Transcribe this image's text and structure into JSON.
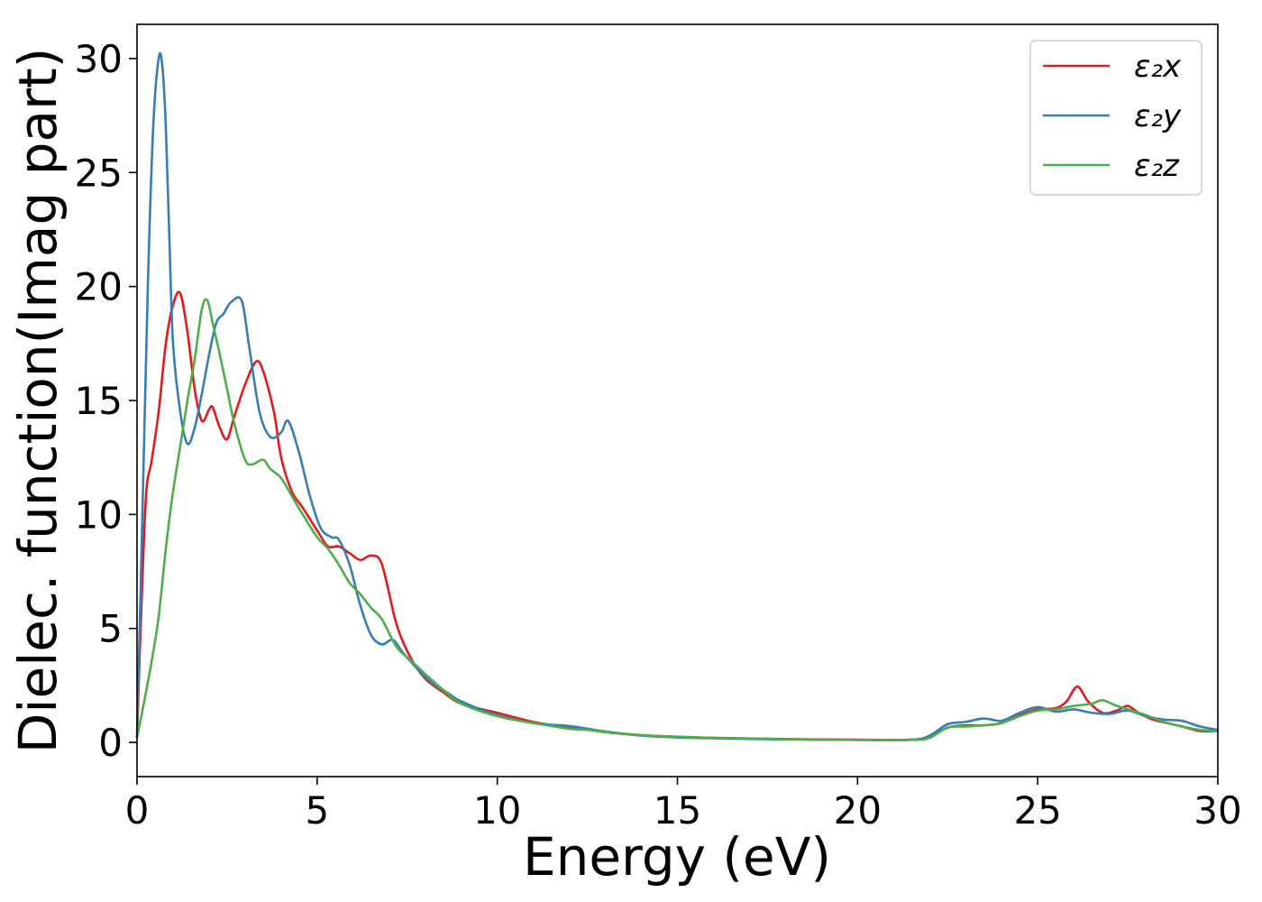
{
  "chart_data": {
    "type": "line",
    "xlabel": "Energy (eV)",
    "ylabel": "Dielec. function(Imag part)",
    "xlim": [
      0,
      30
    ],
    "ylim": [
      -1.5,
      31.5
    ],
    "xticks": [
      0,
      5,
      10,
      15,
      20,
      25,
      30
    ],
    "yticks": [
      0,
      5,
      10,
      15,
      20,
      25,
      30
    ],
    "grid": false,
    "legend_position": "top-right",
    "series": [
      {
        "name": "ε₂x",
        "color": "#e41a1c",
        "x": [
          0,
          0.1,
          0.25,
          0.4,
          0.6,
          0.8,
          1.0,
          1.2,
          1.4,
          1.6,
          1.8,
          2.0,
          2.1,
          2.3,
          2.5,
          2.7,
          3.0,
          3.3,
          3.5,
          3.8,
          4.0,
          4.3,
          4.6,
          5.0,
          5.3,
          5.6,
          5.9,
          6.2,
          6.5,
          6.8,
          7.2,
          7.6,
          8.0,
          8.5,
          9.0,
          10.0,
          11.0,
          12.0,
          12.5,
          13.0,
          14.0,
          15.0,
          16.0,
          18.0,
          20.0,
          21.5,
          22.0,
          22.5,
          23.0,
          23.5,
          24.0,
          24.5,
          25.0,
          25.5,
          25.8,
          26.1,
          26.4,
          26.8,
          27.2,
          27.5,
          27.8,
          28.2,
          28.6,
          29.0,
          29.5,
          30.0
        ],
        "values": [
          0.2,
          5.0,
          10.8,
          12.3,
          14.5,
          17.5,
          19.2,
          19.7,
          18.0,
          15.5,
          14.1,
          14.6,
          14.7,
          13.8,
          13.3,
          14.3,
          15.7,
          16.7,
          16.3,
          14.5,
          12.5,
          11.0,
          10.3,
          9.3,
          8.6,
          8.6,
          8.3,
          8.0,
          8.2,
          7.8,
          5.2,
          3.7,
          2.8,
          2.2,
          1.7,
          1.3,
          0.9,
          0.65,
          0.6,
          0.45,
          0.32,
          0.25,
          0.2,
          0.15,
          0.12,
          0.12,
          0.25,
          0.65,
          0.75,
          0.75,
          0.85,
          1.2,
          1.45,
          1.5,
          1.8,
          2.45,
          1.8,
          1.3,
          1.4,
          1.6,
          1.3,
          1.0,
          0.85,
          0.7,
          0.5,
          0.5
        ]
      },
      {
        "name": "ε₂y",
        "color": "#377eb8",
        "x": [
          0,
          0.15,
          0.3,
          0.45,
          0.6,
          0.7,
          0.8,
          0.9,
          1.0,
          1.2,
          1.4,
          1.6,
          1.8,
          2.0,
          2.2,
          2.4,
          2.6,
          2.9,
          3.1,
          3.4,
          3.7,
          4.0,
          4.2,
          4.5,
          4.8,
          5.1,
          5.4,
          5.6,
          5.9,
          6.2,
          6.5,
          6.8,
          7.1,
          7.4,
          7.8,
          8.2,
          8.6,
          9.0,
          10.0,
          11.0,
          12.0,
          12.5,
          13.0,
          14.0,
          15.0,
          16.0,
          18.0,
          20.0,
          21.5,
          22.0,
          22.5,
          23.0,
          23.5,
          24.0,
          24.5,
          25.0,
          25.5,
          26.0,
          26.5,
          27.0,
          27.5,
          28.0,
          28.5,
          29.0,
          29.5,
          30.0
        ],
        "values": [
          0.2,
          10.0,
          20.0,
          27.0,
          30.0,
          29.7,
          27.0,
          22.0,
          17.5,
          14.5,
          13.1,
          13.8,
          15.3,
          17.0,
          18.4,
          18.8,
          19.3,
          19.4,
          17.5,
          14.5,
          13.4,
          13.6,
          14.1,
          12.7,
          10.8,
          9.4,
          9.0,
          8.9,
          7.8,
          6.0,
          4.7,
          4.3,
          4.5,
          3.9,
          3.2,
          2.6,
          2.2,
          1.8,
          1.2,
          0.85,
          0.72,
          0.6,
          0.48,
          0.3,
          0.22,
          0.18,
          0.13,
          0.11,
          0.12,
          0.3,
          0.8,
          0.9,
          1.05,
          0.95,
          1.3,
          1.55,
          1.35,
          1.45,
          1.3,
          1.25,
          1.4,
          1.15,
          1.0,
          0.95,
          0.7,
          0.55
        ]
      },
      {
        "name": "ε₂z",
        "color": "#4daf4a",
        "x": [
          0,
          0.2,
          0.4,
          0.6,
          0.8,
          1.0,
          1.2,
          1.4,
          1.6,
          1.8,
          1.95,
          2.1,
          2.3,
          2.5,
          2.7,
          3.0,
          3.2,
          3.5,
          3.7,
          4.0,
          4.3,
          4.6,
          5.0,
          5.3,
          5.6,
          5.9,
          6.2,
          6.5,
          6.8,
          7.2,
          7.6,
          8.0,
          8.5,
          9.0,
          10.0,
          11.0,
          12.0,
          12.5,
          13.0,
          14.0,
          15.0,
          16.0,
          18.0,
          20.0,
          21.5,
          22.0,
          22.5,
          23.0,
          23.5,
          24.0,
          24.5,
          25.0,
          25.5,
          26.0,
          26.5,
          26.8,
          27.2,
          27.6,
          28.0,
          28.5,
          29.0,
          29.5,
          30.0
        ],
        "values": [
          0.2,
          1.8,
          3.5,
          5.5,
          8.5,
          11.0,
          13.0,
          15.0,
          16.8,
          19.0,
          19.4,
          18.4,
          17.0,
          15.5,
          14.0,
          12.4,
          12.2,
          12.4,
          12.0,
          11.6,
          10.8,
          10.0,
          9.0,
          8.5,
          7.8,
          7.0,
          6.5,
          5.9,
          5.4,
          4.2,
          3.6,
          3.0,
          2.3,
          1.7,
          1.15,
          0.85,
          0.6,
          0.55,
          0.45,
          0.32,
          0.25,
          0.2,
          0.14,
          0.11,
          0.11,
          0.2,
          0.65,
          0.7,
          0.75,
          0.85,
          1.15,
          1.4,
          1.45,
          1.6,
          1.7,
          1.85,
          1.6,
          1.4,
          1.2,
          0.9,
          0.7,
          0.55,
          0.5
        ]
      }
    ]
  }
}
